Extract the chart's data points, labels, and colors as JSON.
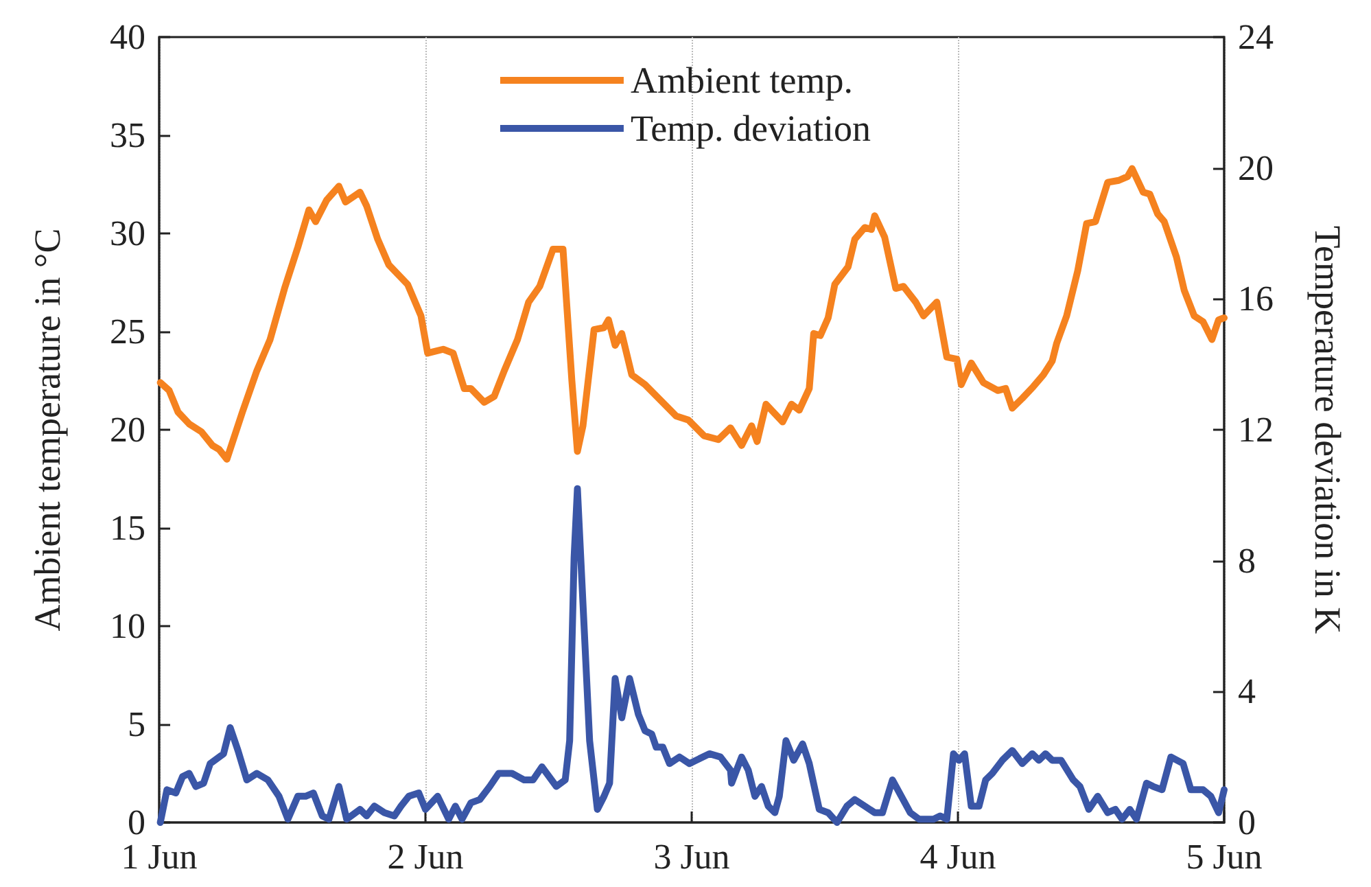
{
  "chart_data": {
    "type": "line",
    "ylabel": "Ambient temperature in °C",
    "y2label": "Temperature deviation in K",
    "xlim": [
      "--06-01",
      "--06-05"
    ],
    "xticks": [
      {
        "value": "--06-01",
        "label": "1 Jun"
      },
      {
        "value": "--06-02",
        "label": "2 Jun"
      },
      {
        "value": "--06-03",
        "label": "3 Jun"
      },
      {
        "value": "--06-04",
        "label": "4 Jun"
      },
      {
        "value": "--06-05",
        "label": "5 Jun"
      }
    ],
    "ylim": [
      0,
      40
    ],
    "yticks": [
      0,
      5,
      10,
      15,
      20,
      25,
      30,
      35,
      40
    ],
    "y2lim": [
      0,
      24
    ],
    "y2ticks": [
      0,
      4,
      8,
      12,
      16,
      20,
      24
    ],
    "grid": "x",
    "legend": "top",
    "marker": "none",
    "line_style": "solid",
    "series": [
      {
        "name": "Ambient temp.",
        "color": "#f5821f",
        "x": [
          "--06-01T00:06",
          "--06-01T00:54",
          "--06-01T01:42",
          "--06-01T02:42",
          "--06-01T03:48",
          "--06-01T04:48",
          "--06-01T05:24",
          "--06-01T06:06",
          "--06-01T07:30",
          "--06-01T08:48",
          "--06-01T10:00",
          "--06-01T11:18",
          "--06-01T12:30",
          "--06-01T13:30",
          "--06-01T14:06",
          "--06-01T15:06",
          "--06-01T16:12",
          "--06-01T16:48",
          "--06-01T18:06",
          "--06-01T18:42",
          "--06-01T19:42",
          "--06-01T20:42",
          "--06-01T22:24",
          "--06-01T23:36",
          "--06-02T00:12",
          "--06-02T01:36",
          "--06-02T02:30",
          "--06-02T03:30",
          "--06-02T04:06",
          "--06-02T05:18",
          "--06-02T06:12",
          "--06-02T07:06",
          "--06-02T08:18",
          "--06-02T09:18",
          "--06-02T10:18",
          "--06-02T11:30",
          "--06-02T12:24",
          "--06-02T13:12",
          "--06-02T13:42",
          "--06-02T14:12",
          "--06-02T15:12",
          "--06-02T16:06",
          "--06-02T16:30",
          "--06-02T17:06",
          "--06-02T17:42",
          "--06-02T18:36",
          "--06-02T19:48",
          "--06-02T21:54",
          "--06-02T22:36",
          "--06-02T23:42",
          "--06-03T01:06",
          "--06-03T02:24",
          "--06-03T03:30",
          "--06-03T04:30",
          "--06-03T05:24",
          "--06-03T05:54",
          "--06-03T06:42",
          "--06-03T08:12",
          "--06-03T09:00",
          "--06-03T09:42",
          "--06-03T10:36",
          "--06-03T11:00",
          "--06-03T11:36",
          "--06-03T12:18",
          "--06-03T12:54",
          "--06-03T14:06",
          "--06-03T14:42",
          "--06-03T15:36",
          "--06-03T16:12",
          "--06-03T16:30",
          "--06-03T17:24",
          "--06-03T18:24",
          "--06-03T19:06",
          "--06-03T20:12",
          "--06-03T20:54",
          "--06-03T22:06",
          "--06-03T23:00",
          "--06-03T23:54",
          "--06-04T00:18",
          "--06-04T01:12",
          "--06-04T02:18",
          "--06-04T03:36",
          "--06-04T04:18",
          "--06-04T04:54",
          "--06-04T05:48",
          "--06-04T06:48",
          "--06-04T07:42",
          "--06-04T08:30",
          "--06-04T08:54",
          "--06-04T09:48",
          "--06-04T10:48",
          "--06-04T11:36",
          "--06-04T12:24",
          "--06-04T13:30",
          "--06-04T14:30",
          "--06-04T15:18",
          "--06-04T15:42",
          "--06-04T16:42",
          "--06-04T17:18",
          "--06-04T18:00",
          "--06-04T18:36",
          "--06-04T19:42",
          "--06-04T20:24",
          "--06-04T21:18",
          "--06-04T22:06",
          "--06-04T22:54",
          "--06-04T23:30",
          "--06-05T00:00"
        ],
        "values": [
          22.4,
          22.0,
          20.9,
          20.3,
          19.9,
          19.2,
          19.0,
          18.5,
          20.9,
          23.0,
          24.6,
          27.2,
          29.3,
          31.2,
          30.6,
          31.7,
          32.4,
          31.6,
          32.1,
          31.4,
          29.7,
          28.4,
          27.4,
          25.8,
          23.9,
          24.1,
          23.9,
          22.1,
          22.1,
          21.4,
          21.7,
          23.0,
          24.6,
          26.5,
          27.3,
          29.2,
          29.2,
          22.5,
          18.9,
          20.2,
          25.1,
          25.2,
          25.6,
          24.3,
          24.9,
          22.8,
          22.3,
          21.1,
          20.7,
          20.5,
          19.7,
          19.5,
          20.1,
          19.2,
          20.2,
          19.4,
          21.3,
          20.4,
          21.3,
          21.0,
          22.1,
          24.9,
          24.8,
          25.7,
          27.4,
          28.3,
          29.7,
          30.3,
          30.2,
          30.9,
          29.8,
          27.2,
          27.3,
          26.5,
          25.8,
          26.5,
          23.7,
          23.6,
          22.3,
          23.4,
          22.4,
          22.0,
          22.1,
          21.1,
          21.6,
          22.2,
          22.8,
          23.5,
          24.4,
          25.8,
          28.1,
          30.5,
          30.6,
          32.6,
          32.7,
          32.9,
          33.3,
          32.1,
          32.0,
          31.0,
          30.6,
          28.8,
          27.1,
          25.8,
          25.5,
          24.6,
          25.6,
          25.7
        ]
      },
      {
        "name": "Temp. deviation",
        "color": "#3a56a7",
        "axis": "y2",
        "x": [
          "--06-01T00:06",
          "--06-01T00:42",
          "--06-01T01:30",
          "--06-01T02:06",
          "--06-01T02:42",
          "--06-01T03:18",
          "--06-01T04:00",
          "--06-01T04:36",
          "--06-01T05:24",
          "--06-01T05:48",
          "--06-01T06:24",
          "--06-01T07:06",
          "--06-01T07:54",
          "--06-01T08:48",
          "--06-01T09:48",
          "--06-01T10:48",
          "--06-01T11:36",
          "--06-01T12:30",
          "--06-01T13:12",
          "--06-01T13:54",
          "--06-01T14:42",
          "--06-01T15:18",
          "--06-01T16:12",
          "--06-01T16:54",
          "--06-01T18:06",
          "--06-01T18:42",
          "--06-01T19:24",
          "--06-01T20:18",
          "--06-01T21:12",
          "--06-01T21:48",
          "--06-01T22:30",
          "--06-01T23:24",
          "--06-02T00:00",
          "--06-02T01:06",
          "--06-02T02:06",
          "--06-02T02:42",
          "--06-02T03:18",
          "--06-02T04:06",
          "--06-02T04:54",
          "--06-02T05:48",
          "--06-02T06:36",
          "--06-02T07:48",
          "--06-02T08:54",
          "--06-02T09:42",
          "--06-02T10:30",
          "--06-02T11:48",
          "--06-02T12:36",
          "--06-02T13:00",
          "--06-02T13:24",
          "--06-02T13:42",
          "--06-02T14:12",
          "--06-02T14:48",
          "--06-02T15:30",
          "--06-02T16:06",
          "--06-02T16:36",
          "--06-02T17:06",
          "--06-02T17:42",
          "--06-02T18:24",
          "--06-02T19:12",
          "--06-02T19:48",
          "--06-02T20:24",
          "--06-02T20:48",
          "--06-02T21:24",
          "--06-02T22:00",
          "--06-02T22:54",
          "--06-02T23:48",
          "--06-03T01:36",
          "--06-03T02:36",
          "--06-03T03:30",
          "--06-03T03:36",
          "--06-03T04:30",
          "--06-03T05:06",
          "--06-03T05:42",
          "--06-03T06:18",
          "--06-03T06:54",
          "--06-03T07:30",
          "--06-03T07:54",
          "--06-03T08:30",
          "--06-03T09:12",
          "--06-03T10:00",
          "--06-03T10:36",
          "--06-03T11:30",
          "--06-03T12:18",
          "--06-03T13:06",
          "--06-03T14:00",
          "--06-03T14:42",
          "--06-03T15:36",
          "--06-03T16:30",
          "--06-03T17:12",
          "--06-03T18:06",
          "--06-03T18:54",
          "--06-03T19:42",
          "--06-03T20:30",
          "--06-03T21:48",
          "--06-03T22:24",
          "--06-03T23:00",
          "--06-03T23:36",
          "--06-04T00:06",
          "--06-04T00:36",
          "--06-04T01:12",
          "--06-04T01:54",
          "--06-04T02:30",
          "--06-04T03:06",
          "--06-04T04:00",
          "--06-04T04:54",
          "--06-04T05:48",
          "--06-04T06:42",
          "--06-04T07:18",
          "--06-04T07:54",
          "--06-04T08:30",
          "--06-04T09:18",
          "--06-04T10:24",
          "--06-04T11:00",
          "--06-04T11:48",
          "--06-04T12:36",
          "--06-04T13:30",
          "--06-04T14:12",
          "--06-04T14:48",
          "--06-04T15:30",
          "--06-04T16:06",
          "--06-04T17:00",
          "--06-04T17:36",
          "--06-04T18:24",
          "--06-04T19:12",
          "--06-04T20:18",
          "--06-04T21:00",
          "--06-04T22:06",
          "--06-04T22:48",
          "--06-04T23:30",
          "--06-05T00:00"
        ],
        "values": [
          0,
          1.0,
          0.9,
          1.4,
          1.5,
          1.1,
          1.2,
          1.8,
          2.0,
          2.1,
          2.9,
          2.2,
          1.3,
          1.5,
          1.3,
          0.8,
          0.1,
          0.8,
          0.8,
          0.9,
          0.2,
          0.1,
          1.1,
          0.1,
          0.4,
          0.2,
          0.5,
          0.3,
          0.2,
          0.5,
          0.8,
          0.9,
          0.4,
          0.8,
          0.1,
          0.5,
          0.1,
          0.6,
          0.7,
          1.1,
          1.5,
          1.5,
          1.3,
          1.3,
          1.7,
          1.1,
          1.3,
          2.5,
          8.1,
          10.2,
          6.7,
          2.5,
          0.4,
          0.8,
          1.2,
          4.4,
          3.2,
          4.4,
          3.3,
          2.8,
          2.7,
          2.3,
          2.3,
          1.8,
          2.0,
          1.8,
          2.1,
          2.0,
          1.6,
          1.2,
          2.0,
          1.6,
          0.8,
          1.1,
          0.5,
          0.3,
          0.8,
          2.5,
          1.9,
          2.4,
          1.8,
          0.4,
          0.3,
          0.0,
          0.5,
          0.7,
          0.5,
          0.3,
          0.3,
          1.3,
          0.8,
          0.3,
          0.1,
          0.1,
          0.2,
          0.1,
          2.1,
          1.9,
          2.1,
          0.5,
          0.5,
          1.3,
          1.5,
          1.9,
          2.2,
          1.8,
          2.1,
          1.9,
          2.1,
          1.9,
          1.9,
          1.3,
          1.1,
          0.4,
          0.8,
          0.3,
          0.4,
          0.1,
          0.4,
          0.1,
          1.2,
          1.1,
          1.0,
          2.0,
          1.8,
          1.0,
          1.0,
          0.8,
          0.3,
          1.0
        ]
      }
    ]
  }
}
